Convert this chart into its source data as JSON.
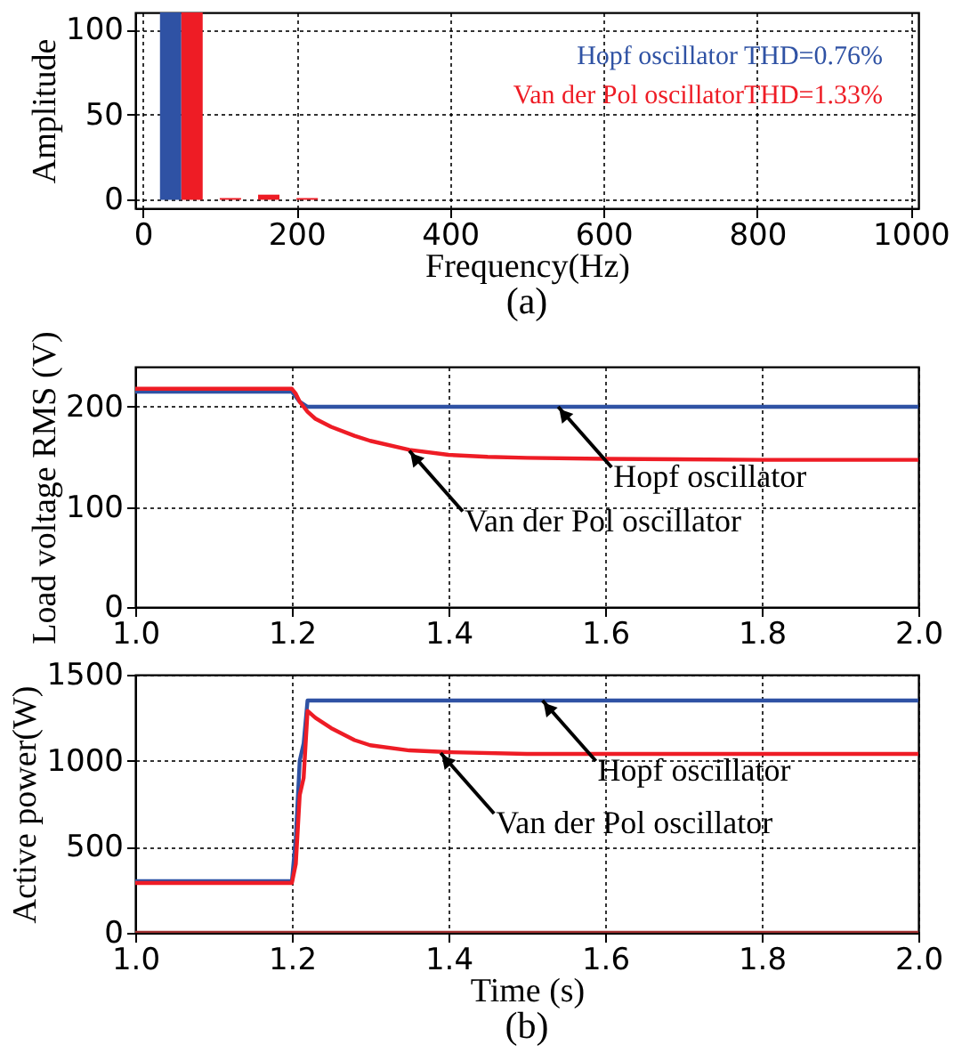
{
  "chart_data": [
    {
      "type": "bar",
      "xlabel": "Frequency(Hz)",
      "ylabel": "Amplitude",
      "x": [
        50,
        100,
        150,
        200,
        250,
        300,
        350,
        400,
        450,
        500,
        550,
        600,
        650,
        700,
        750,
        800,
        850,
        900,
        950,
        1000
      ],
      "xlim": [
        -10,
        1010
      ],
      "xticks": [
        0,
        200,
        400,
        600,
        800,
        {
          "value": 1000,
          "label": "1000"
        }
      ],
      "ylim": [
        -5,
        110
      ],
      "yticks": [
        0,
        50,
        100
      ],
      "grid": true,
      "annotations": [
        "(a)"
      ],
      "series": [
        {
          "name": "Hopf oscillator THD=0.76%",
          "color": "#2f52a4",
          "values": [
            110,
            0,
            0,
            0,
            0,
            0,
            0,
            0,
            0,
            0,
            0,
            0,
            0,
            0,
            0,
            0,
            0,
            0,
            0,
            0
          ]
        },
        {
          "name": "Van der Pol oscillatorTHD=1.33%",
          "color": "#ee1c25",
          "values": [
            110,
            1,
            3,
            1,
            0,
            0,
            0,
            0,
            0,
            0,
            0,
            0,
            0,
            0,
            0,
            0,
            0,
            0,
            0,
            0
          ]
        }
      ]
    },
    {
      "type": "line",
      "ylabel": "Load voltage RMS (V)",
      "xlim": [
        1.0,
        2.0
      ],
      "xticks": [
        {
          "value": 1.0,
          "label": "1.0"
        },
        1.2,
        1.4,
        1.6,
        1.8,
        {
          "value": 2.0,
          "label": "2.0"
        }
      ],
      "ylim": [
        0,
        240
      ],
      "yticks": [
        0,
        100,
        200
      ],
      "grid": true,
      "annotations": [
        {
          "text": "Hopf oscillator",
          "x": 1.54,
          "y": 200
        },
        {
          "text": "Van der Pol oscillator",
          "x": 1.35,
          "y": 156
        }
      ],
      "series": [
        {
          "color": "#2f52a4",
          "x": [
            1.0,
            1.2,
            1.21,
            1.22,
            1.5,
            2.0
          ],
          "values": [
            215,
            215,
            205,
            200,
            200,
            200
          ]
        },
        {
          "color": "#ee1c25",
          "x": [
            1.0,
            1.2,
            1.205,
            1.21,
            1.215,
            1.22,
            1.23,
            1.25,
            1.28,
            1.3,
            1.35,
            1.4,
            1.45,
            1.5,
            1.6,
            1.8,
            2.0
          ],
          "values": [
            218,
            218,
            213,
            205,
            200,
            195,
            188,
            180,
            171,
            166,
            157,
            152,
            150,
            149,
            148,
            147,
            147
          ]
        }
      ]
    },
    {
      "type": "line",
      "xlabel": "Time (s)",
      "ylabel": "Active power(W)",
      "xlim": [
        1.0,
        2.0
      ],
      "xticks": [
        {
          "value": 1.0,
          "label": "1.0"
        },
        1.2,
        1.4,
        1.6,
        1.8,
        {
          "value": 2.0,
          "label": "2.0"
        }
      ],
      "ylim": [
        0,
        1500
      ],
      "yticks": [
        0,
        500,
        {
          "value": 1000,
          "label": "1000"
        },
        {
          "value": 1500,
          "label": "1500"
        }
      ],
      "grid": true,
      "annotations": [
        {
          "text": "Hopf oscillator",
          "x": 1.52,
          "y": 1350
        },
        {
          "text": "Van der Pol oscillator",
          "x": 1.39,
          "y": 1045
        },
        "(b)"
      ],
      "series": [
        {
          "color": "#2f52a4",
          "x": [
            1.0,
            1.2,
            1.205,
            1.21,
            1.215,
            1.22,
            1.5,
            2.0
          ],
          "values": [
            300,
            300,
            550,
            1000,
            1100,
            1350,
            1350,
            1350
          ]
        },
        {
          "color": "#ee1c25",
          "x": [
            1.0,
            1.2,
            1.205,
            1.21,
            1.215,
            1.22,
            1.23,
            1.25,
            1.28,
            1.3,
            1.35,
            1.4,
            1.5,
            1.7,
            2.0
          ],
          "values": [
            290,
            290,
            400,
            800,
            900,
            1290,
            1250,
            1190,
            1120,
            1090,
            1060,
            1050,
            1040,
            1040,
            1040
          ]
        },
        {
          "color": "#a03030",
          "x": [
            1.0,
            2.0
          ],
          "values": [
            0,
            0
          ]
        }
      ]
    }
  ]
}
